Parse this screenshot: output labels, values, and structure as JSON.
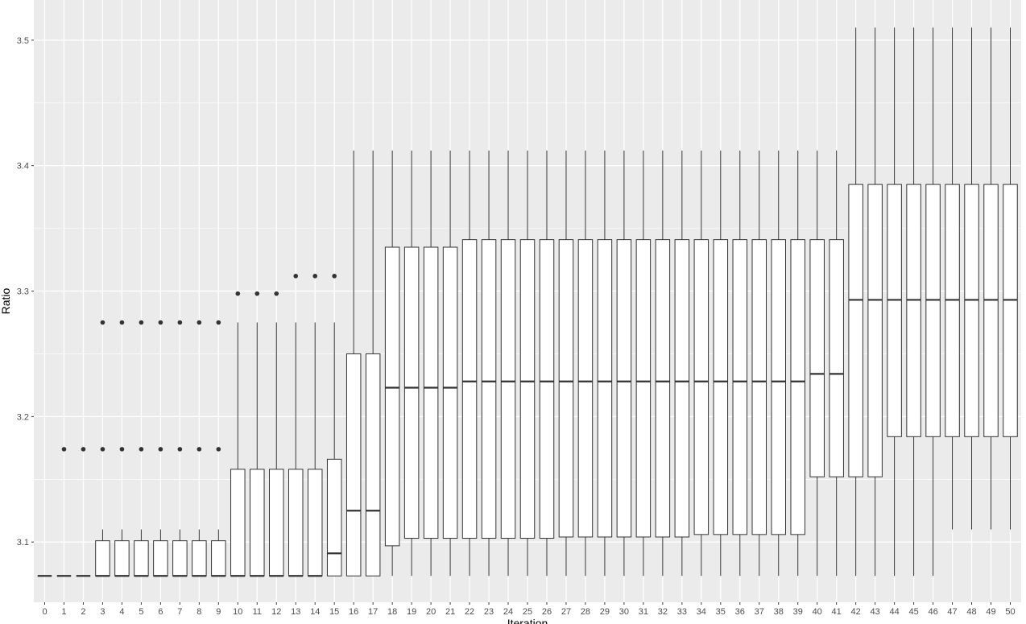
{
  "chart_data": {
    "type": "boxplot",
    "xlabel": "Iteration",
    "ylabel": "Ratio",
    "ylim": [
      3.052,
      3.532
    ],
    "y_ticks": [
      3.1,
      3.2,
      3.3,
      3.4,
      3.5
    ],
    "y_tick_labels": [
      "3.1",
      "3.2",
      "3.3",
      "3.4",
      "3.5"
    ],
    "grid": true,
    "legend": "none",
    "colors": {
      "panel": "#ebebeb",
      "grid": "#ffffff",
      "box_fill": "#ffffff",
      "line": "#333333",
      "tick_text": "#4d4d4d"
    },
    "categories": [
      "0",
      "1",
      "2",
      "3",
      "4",
      "5",
      "6",
      "7",
      "8",
      "9",
      "10",
      "11",
      "12",
      "13",
      "14",
      "15",
      "16",
      "17",
      "18",
      "19",
      "20",
      "21",
      "22",
      "23",
      "24",
      "25",
      "26",
      "27",
      "28",
      "29",
      "30",
      "31",
      "32",
      "33",
      "34",
      "35",
      "36",
      "37",
      "38",
      "39",
      "40",
      "41",
      "42",
      "43",
      "44",
      "45",
      "46",
      "47",
      "48",
      "49",
      "50"
    ],
    "boxes": [
      {
        "lw": 3.073,
        "q1": 3.073,
        "med": 3.073,
        "q3": 3.073,
        "uw": 3.073,
        "out": []
      },
      {
        "lw": 3.073,
        "q1": 3.073,
        "med": 3.073,
        "q3": 3.073,
        "uw": 3.073,
        "out": [
          3.174
        ]
      },
      {
        "lw": 3.073,
        "q1": 3.073,
        "med": 3.073,
        "q3": 3.073,
        "uw": 3.073,
        "out": [
          3.174
        ]
      },
      {
        "lw": 3.073,
        "q1": 3.073,
        "med": 3.073,
        "q3": 3.101,
        "uw": 3.11,
        "out": [
          3.174,
          3.275
        ]
      },
      {
        "lw": 3.073,
        "q1": 3.073,
        "med": 3.073,
        "q3": 3.101,
        "uw": 3.11,
        "out": [
          3.174,
          3.275
        ]
      },
      {
        "lw": 3.073,
        "q1": 3.073,
        "med": 3.073,
        "q3": 3.101,
        "uw": 3.11,
        "out": [
          3.174,
          3.275
        ]
      },
      {
        "lw": 3.073,
        "q1": 3.073,
        "med": 3.073,
        "q3": 3.101,
        "uw": 3.11,
        "out": [
          3.174,
          3.275
        ]
      },
      {
        "lw": 3.073,
        "q1": 3.073,
        "med": 3.073,
        "q3": 3.101,
        "uw": 3.11,
        "out": [
          3.174,
          3.275
        ]
      },
      {
        "lw": 3.073,
        "q1": 3.073,
        "med": 3.073,
        "q3": 3.101,
        "uw": 3.11,
        "out": [
          3.174,
          3.275
        ]
      },
      {
        "lw": 3.073,
        "q1": 3.073,
        "med": 3.073,
        "q3": 3.101,
        "uw": 3.11,
        "out": [
          3.174,
          3.275
        ]
      },
      {
        "lw": 3.073,
        "q1": 3.073,
        "med": 3.073,
        "q3": 3.158,
        "uw": 3.275,
        "out": [
          3.298
        ]
      },
      {
        "lw": 3.073,
        "q1": 3.073,
        "med": 3.073,
        "q3": 3.158,
        "uw": 3.275,
        "out": [
          3.298
        ]
      },
      {
        "lw": 3.073,
        "q1": 3.073,
        "med": 3.073,
        "q3": 3.158,
        "uw": 3.275,
        "out": [
          3.298
        ]
      },
      {
        "lw": 3.073,
        "q1": 3.073,
        "med": 3.073,
        "q3": 3.158,
        "uw": 3.275,
        "out": [
          3.312
        ]
      },
      {
        "lw": 3.073,
        "q1": 3.073,
        "med": 3.073,
        "q3": 3.158,
        "uw": 3.275,
        "out": [
          3.312
        ]
      },
      {
        "lw": 3.073,
        "q1": 3.073,
        "med": 3.091,
        "q3": 3.166,
        "uw": 3.275,
        "out": [
          3.312
        ]
      },
      {
        "lw": 3.073,
        "q1": 3.073,
        "med": 3.125,
        "q3": 3.25,
        "uw": 3.412,
        "out": []
      },
      {
        "lw": 3.073,
        "q1": 3.073,
        "med": 3.125,
        "q3": 3.25,
        "uw": 3.412,
        "out": []
      },
      {
        "lw": 3.073,
        "q1": 3.097,
        "med": 3.223,
        "q3": 3.335,
        "uw": 3.412,
        "out": []
      },
      {
        "lw": 3.073,
        "q1": 3.103,
        "med": 3.223,
        "q3": 3.335,
        "uw": 3.412,
        "out": []
      },
      {
        "lw": 3.073,
        "q1": 3.103,
        "med": 3.223,
        "q3": 3.335,
        "uw": 3.412,
        "out": []
      },
      {
        "lw": 3.073,
        "q1": 3.103,
        "med": 3.223,
        "q3": 3.335,
        "uw": 3.412,
        "out": []
      },
      {
        "lw": 3.073,
        "q1": 3.103,
        "med": 3.228,
        "q3": 3.341,
        "uw": 3.412,
        "out": []
      },
      {
        "lw": 3.073,
        "q1": 3.103,
        "med": 3.228,
        "q3": 3.341,
        "uw": 3.412,
        "out": []
      },
      {
        "lw": 3.073,
        "q1": 3.103,
        "med": 3.228,
        "q3": 3.341,
        "uw": 3.412,
        "out": []
      },
      {
        "lw": 3.073,
        "q1": 3.103,
        "med": 3.228,
        "q3": 3.341,
        "uw": 3.412,
        "out": []
      },
      {
        "lw": 3.073,
        "q1": 3.103,
        "med": 3.228,
        "q3": 3.341,
        "uw": 3.412,
        "out": []
      },
      {
        "lw": 3.073,
        "q1": 3.104,
        "med": 3.228,
        "q3": 3.341,
        "uw": 3.412,
        "out": []
      },
      {
        "lw": 3.073,
        "q1": 3.104,
        "med": 3.228,
        "q3": 3.341,
        "uw": 3.412,
        "out": []
      },
      {
        "lw": 3.073,
        "q1": 3.104,
        "med": 3.228,
        "q3": 3.341,
        "uw": 3.412,
        "out": []
      },
      {
        "lw": 3.073,
        "q1": 3.104,
        "med": 3.228,
        "q3": 3.341,
        "uw": 3.412,
        "out": []
      },
      {
        "lw": 3.073,
        "q1": 3.104,
        "med": 3.228,
        "q3": 3.341,
        "uw": 3.412,
        "out": []
      },
      {
        "lw": 3.073,
        "q1": 3.104,
        "med": 3.228,
        "q3": 3.341,
        "uw": 3.412,
        "out": []
      },
      {
        "lw": 3.073,
        "q1": 3.104,
        "med": 3.228,
        "q3": 3.341,
        "uw": 3.412,
        "out": []
      },
      {
        "lw": 3.073,
        "q1": 3.106,
        "med": 3.228,
        "q3": 3.341,
        "uw": 3.412,
        "out": []
      },
      {
        "lw": 3.073,
        "q1": 3.106,
        "med": 3.228,
        "q3": 3.341,
        "uw": 3.412,
        "out": []
      },
      {
        "lw": 3.073,
        "q1": 3.106,
        "med": 3.228,
        "q3": 3.341,
        "uw": 3.412,
        "out": []
      },
      {
        "lw": 3.073,
        "q1": 3.106,
        "med": 3.228,
        "q3": 3.341,
        "uw": 3.412,
        "out": []
      },
      {
        "lw": 3.073,
        "q1": 3.106,
        "med": 3.228,
        "q3": 3.341,
        "uw": 3.412,
        "out": []
      },
      {
        "lw": 3.073,
        "q1": 3.106,
        "med": 3.228,
        "q3": 3.341,
        "uw": 3.412,
        "out": []
      },
      {
        "lw": 3.073,
        "q1": 3.152,
        "med": 3.234,
        "q3": 3.341,
        "uw": 3.412,
        "out": []
      },
      {
        "lw": 3.073,
        "q1": 3.152,
        "med": 3.234,
        "q3": 3.341,
        "uw": 3.412,
        "out": []
      },
      {
        "lw": 3.073,
        "q1": 3.152,
        "med": 3.293,
        "q3": 3.385,
        "uw": 3.51,
        "out": []
      },
      {
        "lw": 3.073,
        "q1": 3.152,
        "med": 3.293,
        "q3": 3.385,
        "uw": 3.51,
        "out": []
      },
      {
        "lw": 3.073,
        "q1": 3.184,
        "med": 3.293,
        "q3": 3.385,
        "uw": 3.51,
        "out": []
      },
      {
        "lw": 3.073,
        "q1": 3.184,
        "med": 3.293,
        "q3": 3.385,
        "uw": 3.51,
        "out": []
      },
      {
        "lw": 3.073,
        "q1": 3.184,
        "med": 3.293,
        "q3": 3.385,
        "uw": 3.51,
        "out": []
      },
      {
        "lw": 3.11,
        "q1": 3.184,
        "med": 3.293,
        "q3": 3.385,
        "uw": 3.51,
        "out": []
      },
      {
        "lw": 3.11,
        "q1": 3.184,
        "med": 3.293,
        "q3": 3.385,
        "uw": 3.51,
        "out": []
      },
      {
        "lw": 3.11,
        "q1": 3.184,
        "med": 3.293,
        "q3": 3.385,
        "uw": 3.51,
        "out": []
      },
      {
        "lw": 3.11,
        "q1": 3.184,
        "med": 3.293,
        "q3": 3.385,
        "uw": 3.51,
        "out": []
      }
    ]
  }
}
